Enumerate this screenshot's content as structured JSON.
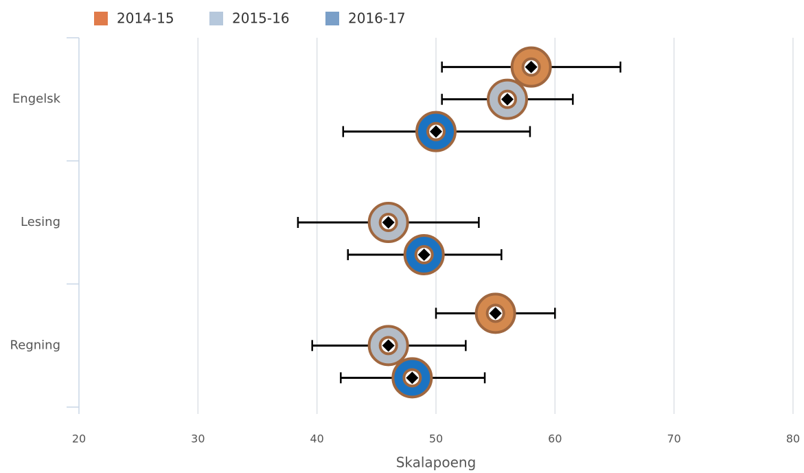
{
  "chart_data": {
    "type": "dot-errorbar",
    "x_label": "Skalapoeng",
    "categories": [
      "Engelsk",
      "Lesing",
      "Regning"
    ],
    "series": [
      {
        "name": "2014-15",
        "color": "#e07b4a",
        "marker_color": "#d4894e",
        "values": [
          58,
          null,
          55
        ],
        "low": [
          50.5,
          null,
          50
        ],
        "high": [
          65.5,
          null,
          60
        ]
      },
      {
        "name": "2015-16",
        "color": "#b6c8dc",
        "marker_color": "#b4bcc6",
        "values": [
          56,
          46,
          46
        ],
        "low": [
          50.5,
          38.4,
          39.6
        ],
        "high": [
          61.5,
          53.6,
          52.5
        ]
      },
      {
        "name": "2016-17",
        "color": "#7a9fc8",
        "marker_color": "#1a73c2",
        "values": [
          50,
          49,
          48
        ],
        "low": [
          42.2,
          42.6,
          42
        ],
        "high": [
          57.9,
          55.5,
          54.1
        ]
      }
    ],
    "xlim": [
      20,
      80
    ],
    "xticks": [
      20,
      30,
      40,
      50,
      60,
      70,
      80
    ],
    "grid": true,
    "legend": "top-left"
  }
}
